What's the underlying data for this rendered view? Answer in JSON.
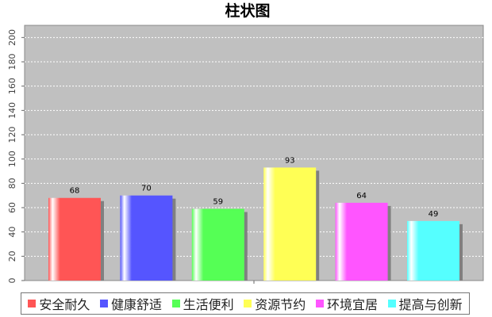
{
  "chart_data": {
    "type": "bar",
    "title": "柱状图",
    "xlabel": "",
    "ylabel": "",
    "ylim": [
      0,
      210
    ],
    "yticks": [
      0,
      20,
      40,
      60,
      80,
      100,
      120,
      140,
      160,
      180,
      200
    ],
    "grid": true,
    "legend_position": "bottom",
    "categories": [
      "安全耐久",
      "健康舒适",
      "生活便利",
      "资源节约",
      "环境宜居",
      "提高与创新"
    ],
    "values": [
      68,
      70,
      59,
      93,
      64,
      49
    ],
    "colors": [
      "#ff5555",
      "#5555ff",
      "#55ff55",
      "#ffff55",
      "#ff55ff",
      "#55ffff"
    ],
    "plot_background": "#c0c0c0"
  }
}
